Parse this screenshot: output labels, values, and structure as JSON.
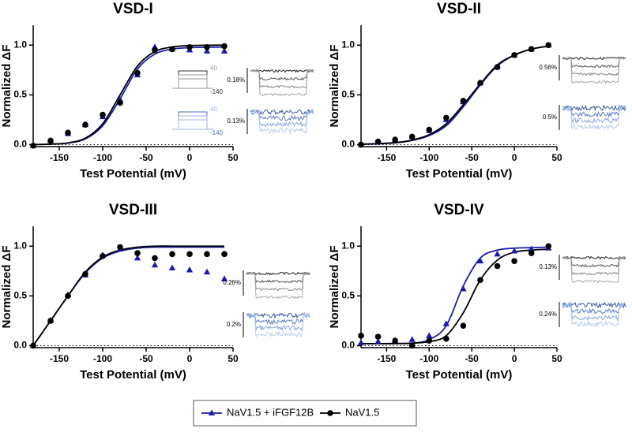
{
  "chart_data": [
    {
      "type": "line",
      "title": "VSD-I",
      "x_label": "Test Potential (mV)",
      "y_label": "Normalized ΔF",
      "x": [
        -180,
        -160,
        -140,
        -120,
        -100,
        -80,
        -60,
        -40,
        -20,
        0,
        20,
        40
      ],
      "series": [
        {
          "name": "NaV1.5 + iFGF12B",
          "color": "#1c1ca8",
          "marker": "triangle",
          "values": [
            -0.01,
            0.04,
            0.11,
            0.2,
            0.28,
            0.45,
            0.7,
            0.98,
            0.96,
            0.95,
            0.94,
            0.94
          ],
          "fit": [
            0.001,
            0.005,
            0.016,
            0.058,
            0.19,
            0.46,
            0.76,
            0.91,
            0.96,
            0.975,
            0.979,
            0.98
          ]
        },
        {
          "name": "NaV1.5",
          "color": "#000000",
          "marker": "circle",
          "values": [
            -0.01,
            0.04,
            0.12,
            0.2,
            0.3,
            0.42,
            0.72,
            0.95,
            0.96,
            0.98,
            0.98,
            0.99
          ],
          "fit": [
            0.001,
            0.005,
            0.018,
            0.065,
            0.21,
            0.5,
            0.79,
            0.935,
            0.982,
            0.995,
            0.999,
            1.0
          ]
        }
      ],
      "xlim": [
        -180,
        50
      ],
      "xticks": [
        -150,
        -100,
        -50,
        0,
        50
      ],
      "ylim": [
        -0.02,
        1.2
      ],
      "yticks": [
        {
          "value": 0,
          "label": "0.0"
        },
        {
          "value": 0.5,
          "label": "0.5"
        },
        {
          "value": 1,
          "label": "1.0"
        }
      ],
      "scale_labels": [
        "0.18%",
        "0.13%"
      ],
      "protocol_labels": [
        "40",
        "-140"
      ]
    },
    {
      "type": "line",
      "title": "VSD-II",
      "x_label": "Test Potential (mV)",
      "y_label": "Normalized ΔF",
      "x": [
        -180,
        -160,
        -140,
        -120,
        -100,
        -80,
        -60,
        -40,
        -20,
        0,
        20,
        40
      ],
      "series": [
        {
          "name": "NaV1.5 + iFGF12B",
          "color": "#1c1ca8",
          "marker": "triangle",
          "values": [
            0.0,
            0.03,
            0.05,
            0.08,
            0.14,
            0.25,
            0.43,
            0.62,
            0.78,
            0.9,
            0.96,
            1.0
          ],
          "fit": [
            0.004,
            0.009,
            0.018,
            0.042,
            0.092,
            0.19,
            0.38,
            0.6,
            0.79,
            0.9,
            0.96,
            0.99
          ]
        },
        {
          "name": "NaV1.5",
          "color": "#000000",
          "marker": "circle",
          "values": [
            0.0,
            0.03,
            0.05,
            0.08,
            0.15,
            0.27,
            0.44,
            0.62,
            0.78,
            0.9,
            0.96,
            1.0
          ],
          "fit": [
            0.005,
            0.01,
            0.02,
            0.045,
            0.1,
            0.21,
            0.4,
            0.61,
            0.8,
            0.9,
            0.96,
            0.99
          ]
        }
      ],
      "xlim": [
        -180,
        50
      ],
      "xticks": [
        -150,
        -100,
        -50,
        0,
        50
      ],
      "ylim": [
        -0.02,
        1.2
      ],
      "yticks": [
        {
          "value": 0,
          "label": "0.0"
        },
        {
          "value": 0.5,
          "label": "0.5"
        },
        {
          "value": 1,
          "label": "1.0"
        }
      ],
      "scale_labels": [
        "0.56%",
        "0.5%"
      ]
    },
    {
      "type": "line",
      "title": "VSD-III",
      "x_label": "Test Potential (mV)",
      "y_label": "Normalized ΔF",
      "x": [
        -180,
        -160,
        -140,
        -120,
        -100,
        -80,
        -60,
        -40,
        -20,
        0,
        20,
        40
      ],
      "series": [
        {
          "name": "NaV1.5 + iFGF12B",
          "color": "#1c1ca8",
          "marker": "triangle",
          "values": [
            0.0,
            0.25,
            0.51,
            0.71,
            0.91,
            0.97,
            0.88,
            0.81,
            0.78,
            0.76,
            0.74,
            0.67
          ],
          "fit": [
            0.0,
            0.25,
            0.5,
            0.73,
            0.88,
            0.95,
            0.98,
            0.99,
            0.99,
            0.99,
            0.99,
            0.99
          ]
        },
        {
          "name": "NaV1.5",
          "color": "#000000",
          "marker": "circle",
          "values": [
            0.0,
            0.25,
            0.5,
            0.72,
            0.9,
            0.99,
            0.93,
            0.88,
            0.92,
            0.92,
            0.92,
            0.92
          ],
          "fit": [
            0.0,
            0.25,
            0.5,
            0.74,
            0.89,
            0.96,
            0.99,
            1.0,
            1.0,
            1.0,
            1.0,
            1.0
          ]
        }
      ],
      "xlim": [
        -180,
        50
      ],
      "xticks": [
        -150,
        -100,
        -50,
        0,
        50
      ],
      "ylim": [
        -0.02,
        1.2
      ],
      "yticks": [
        {
          "value": 0,
          "label": "0.0"
        },
        {
          "value": 0.5,
          "label": "0.5"
        },
        {
          "value": 1,
          "label": "1.0"
        }
      ],
      "scale_labels": [
        "0.26%",
        "0.2%"
      ]
    },
    {
      "type": "line",
      "title": "VSD-IV",
      "x_label": "Test Potential (mV)",
      "y_label": "Normalized ΔF",
      "x": [
        -180,
        -160,
        -140,
        -120,
        -100,
        -80,
        -60,
        -40,
        -20,
        0,
        20,
        40
      ],
      "series": [
        {
          "name": "NaV1.5 + iFGF12B",
          "color": "#1c1ca8",
          "marker": "triangle",
          "values": [
            0.03,
            0.04,
            0.05,
            0.06,
            0.1,
            0.22,
            0.57,
            0.85,
            0.92,
            0.95,
            0.97,
            0.98
          ],
          "fit": [
            0.02,
            0.02,
            0.021,
            0.025,
            0.06,
            0.2,
            0.6,
            0.88,
            0.96,
            0.98,
            0.985,
            0.99
          ]
        },
        {
          "name": "NaV1.5",
          "color": "#000000",
          "marker": "circle",
          "values": [
            0.1,
            0.09,
            0.05,
            0.0,
            0.05,
            0.07,
            0.2,
            0.66,
            0.8,
            0.85,
            0.93,
            1.0
          ],
          "fit": [
            0.02,
            0.02,
            0.021,
            0.025,
            0.04,
            0.1,
            0.33,
            0.66,
            0.86,
            0.94,
            0.96,
            0.97
          ]
        }
      ],
      "xlim": [
        -180,
        50
      ],
      "xticks": [
        -150,
        -100,
        -50,
        0,
        50
      ],
      "ylim": [
        -0.02,
        1.2
      ],
      "yticks": [
        {
          "value": 0,
          "label": "0.0"
        },
        {
          "value": 0.5,
          "label": "0.5"
        },
        {
          "value": 1,
          "label": "1.0"
        }
      ],
      "scale_labels": [
        "0.13%",
        "0.24%"
      ]
    }
  ]
}
